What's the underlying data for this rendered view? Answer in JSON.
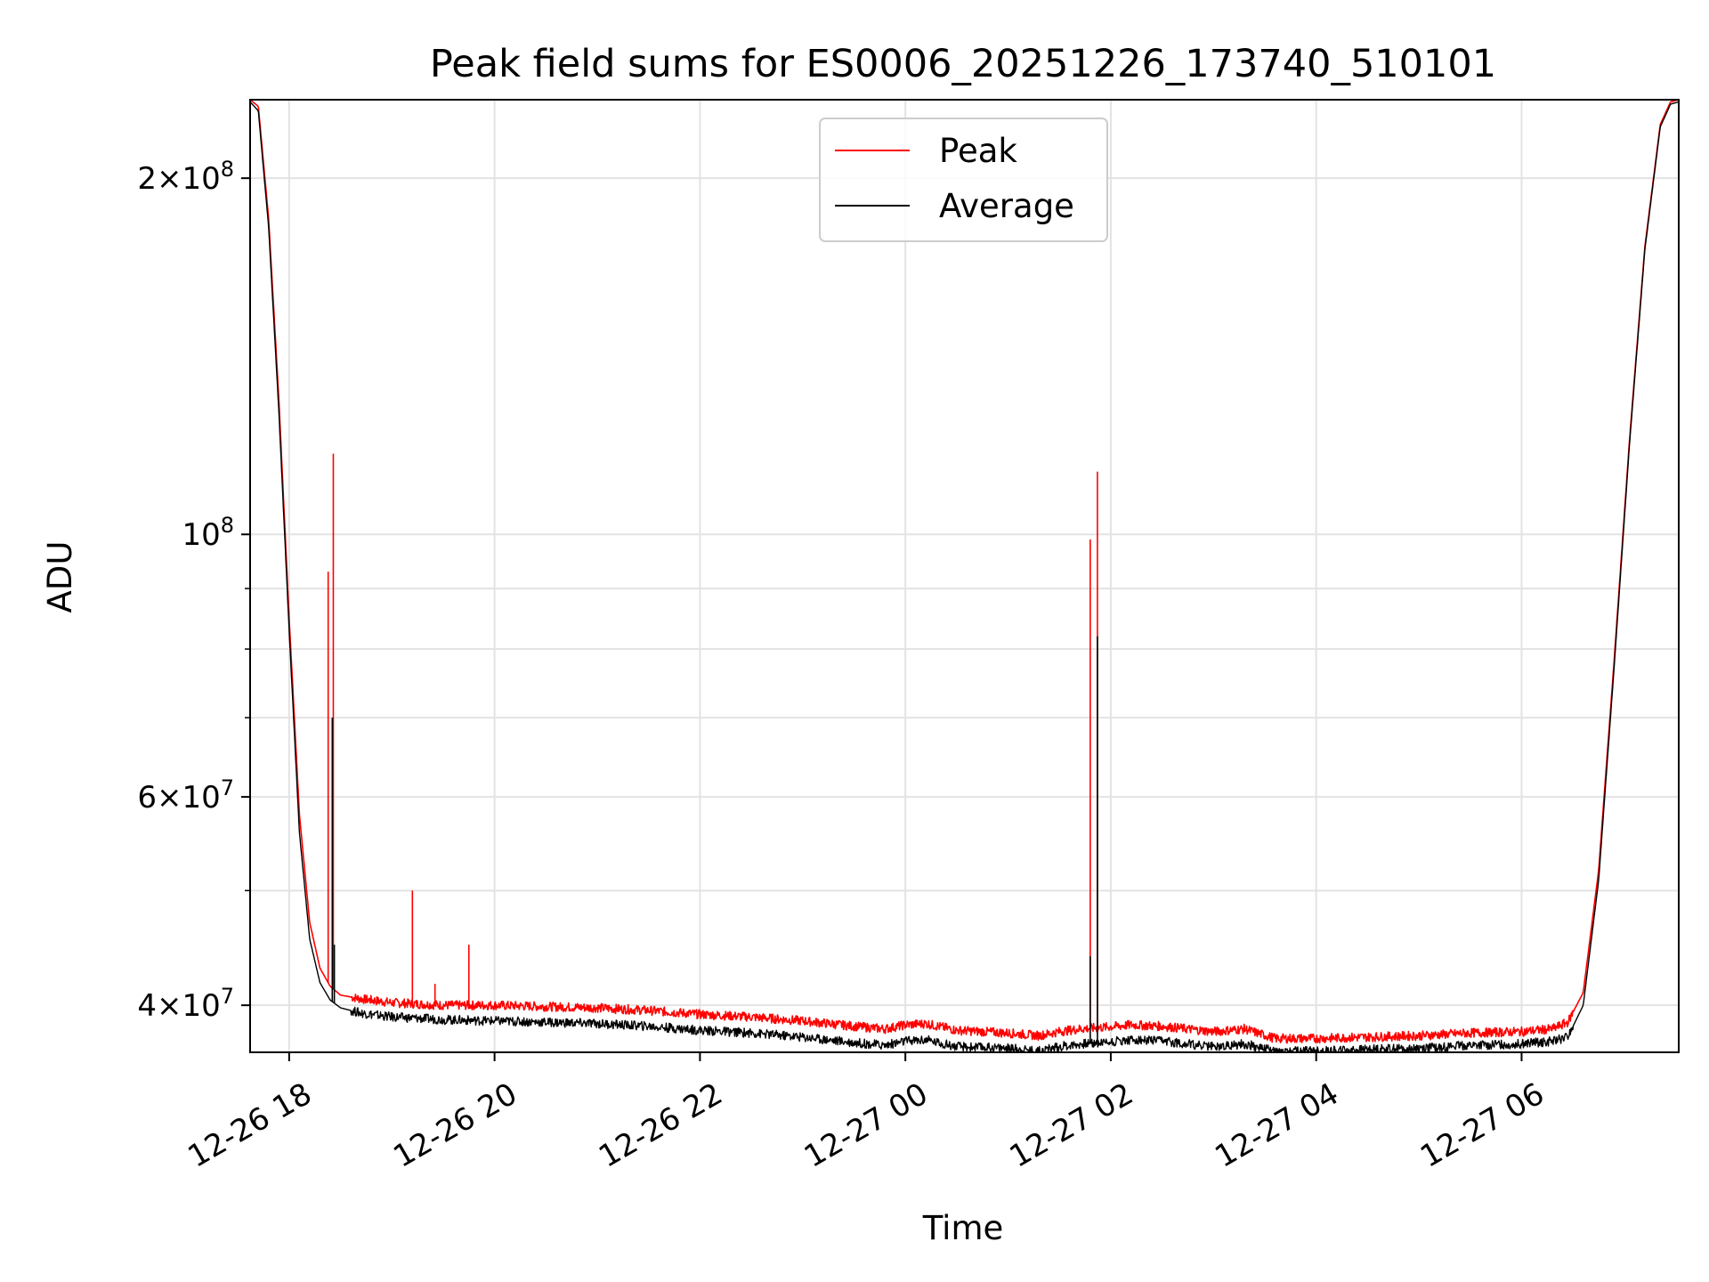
{
  "chart_data": {
    "type": "line",
    "title": "Peak field sums for ES0006_20251226_173740_510101",
    "xlabel": "Time",
    "ylabel": "ADU",
    "yscale": "log",
    "grid": true,
    "legend_position": "top-center",
    "x_unit": "hours since 12-26 00:00",
    "xlim": [
      17.62,
      31.53
    ],
    "ylim": [
      36500000,
      233000000
    ],
    "x_ticks": [
      {
        "value": 18,
        "label": "12-26 18"
      },
      {
        "value": 20,
        "label": "12-26 20"
      },
      {
        "value": 22,
        "label": "12-26 22"
      },
      {
        "value": 24,
        "label": "12-27 00"
      },
      {
        "value": 26,
        "label": "12-27 02"
      },
      {
        "value": 28,
        "label": "12-27 04"
      },
      {
        "value": 30,
        "label": "12-27 06"
      }
    ],
    "y_ticks": [
      {
        "value": 40000000,
        "base": "4",
        "exp": "7"
      },
      {
        "value": 60000000,
        "base": "6",
        "exp": "7"
      },
      {
        "value": 100000000,
        "base": "",
        "exp": "8"
      },
      {
        "value": 200000000,
        "base": "2",
        "exp": "8"
      }
    ],
    "y_minor_ticks": [
      50000000,
      70000000,
      80000000,
      90000000
    ],
    "series": [
      {
        "name": "Peak",
        "color": "#ff0000",
        "x": [
          17.62,
          17.7,
          17.8,
          17.9,
          18.0,
          18.1,
          18.2,
          18.3,
          18.4,
          18.5,
          18.7,
          19.0,
          19.5,
          20.0,
          20.5,
          21.0,
          21.5,
          22.0,
          22.5,
          23.0,
          23.5,
          23.8,
          24.0,
          24.2,
          24.5,
          25.0,
          25.3,
          25.5,
          25.7,
          25.9,
          26.2,
          26.5,
          27.0,
          27.3,
          27.6,
          28.0,
          28.5,
          29.0,
          29.5,
          30.0,
          30.3,
          30.45,
          30.6,
          30.75,
          30.9,
          31.05,
          31.2,
          31.35,
          31.45,
          31.53
        ],
        "y": [
          233000000,
          230000000,
          185000000,
          130000000,
          85000000,
          58000000,
          47000000,
          43000000,
          41500000,
          40800000,
          40500000,
          40200000,
          40000000,
          40000000,
          39900000,
          39800000,
          39600000,
          39300000,
          39100000,
          38800000,
          38400000,
          38200000,
          38500000,
          38600000,
          38100000,
          37900000,
          37700000,
          38000000,
          38200000,
          38300000,
          38500000,
          38400000,
          38000000,
          38200000,
          37500000,
          37500000,
          37600000,
          37700000,
          37900000,
          38000000,
          38200000,
          38700000,
          41000000,
          52000000,
          78000000,
          120000000,
          175000000,
          222000000,
          232000000,
          233000000
        ],
        "spikes": [
          {
            "x": 18.38,
            "y": 93000000
          },
          {
            "x": 18.43,
            "y": 117000000
          },
          {
            "x": 19.2,
            "y": 50000000
          },
          {
            "x": 19.42,
            "y": 41700000
          },
          {
            "x": 19.75,
            "y": 45000000
          },
          {
            "x": 25.8,
            "y": 99000000
          },
          {
            "x": 25.87,
            "y": 113000000
          }
        ]
      },
      {
        "name": "Average",
        "color": "#000000",
        "x": [
          17.62,
          17.7,
          17.8,
          17.9,
          18.0,
          18.1,
          18.2,
          18.3,
          18.4,
          18.5,
          18.7,
          19.0,
          19.5,
          20.0,
          20.5,
          21.0,
          21.5,
          22.0,
          22.5,
          23.0,
          23.5,
          23.8,
          24.0,
          24.2,
          24.5,
          25.0,
          25.3,
          25.5,
          25.7,
          25.9,
          26.2,
          26.5,
          27.0,
          27.3,
          27.6,
          28.0,
          28.5,
          29.0,
          29.5,
          30.0,
          30.3,
          30.45,
          30.6,
          30.75,
          30.9,
          31.05,
          31.2,
          31.35,
          31.45,
          31.53
        ],
        "y": [
          232000000,
          228000000,
          182000000,
          127000000,
          83000000,
          56000000,
          45500000,
          41800000,
          40400000,
          39800000,
          39400000,
          39100000,
          38900000,
          38800000,
          38700000,
          38600000,
          38400000,
          38100000,
          37900000,
          37600000,
          37200000,
          37000000,
          37300000,
          37400000,
          36900000,
          36800000,
          36600000,
          36900000,
          37100000,
          37200000,
          37400000,
          37300000,
          36900000,
          37100000,
          36600000,
          36600000,
          36700000,
          36800000,
          37000000,
          37100000,
          37300000,
          37600000,
          40000000,
          51000000,
          77000000,
          119000000,
          174000000,
          221000000,
          231000000,
          232000000
        ],
        "spikes": [
          {
            "x": 18.42,
            "y": 70000000
          },
          {
            "x": 18.44,
            "y": 45000000
          },
          {
            "x": 25.8,
            "y": 44000000
          },
          {
            "x": 25.87,
            "y": 82000000
          }
        ]
      }
    ]
  }
}
